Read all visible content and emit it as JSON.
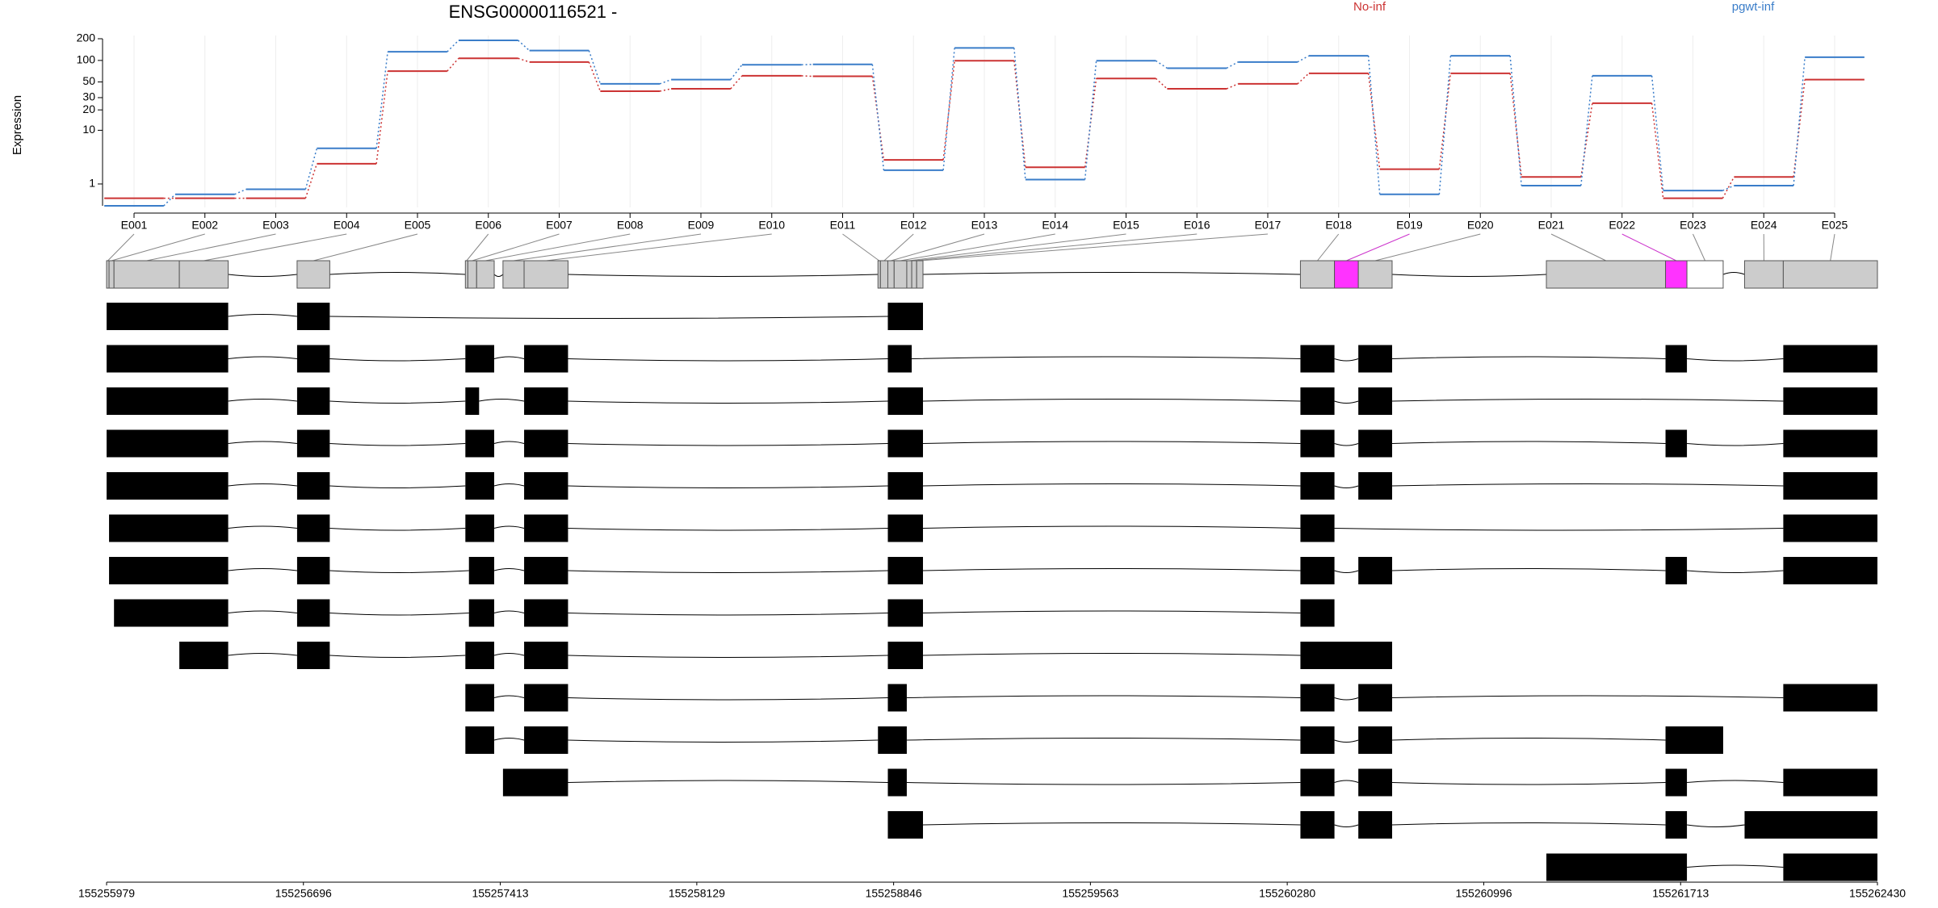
{
  "chart_data": [
    {
      "type": "step",
      "title": "ENSG00000116521 -",
      "y_label": "Expression",
      "yscale": "log10(x+1)",
      "categories": [
        "E001",
        "E002",
        "E003",
        "E004",
        "E005",
        "E006",
        "E007",
        "E008",
        "E009",
        "E010",
        "E011",
        "E012",
        "E013",
        "E014",
        "E015",
        "E016",
        "E017",
        "E018",
        "E019",
        "E020",
        "E021",
        "E022",
        "E023",
        "E024",
        "E025"
      ],
      "series": [
        {
          "name": "No-inf",
          "color": "#cc3333",
          "values": [
            0.27,
            0.27,
            0.27,
            2.8,
            71,
            107,
            95,
            37,
            40,
            61,
            60,
            3.3,
            99,
            2.4,
            56,
            40,
            47,
            66,
            2.2,
            66,
            1.5,
            25,
            0.27,
            1.5,
            54
          ]
        },
        {
          "name": "pgwt-inf",
          "color": "#3a7dc9",
          "values": [
            0,
            0.44,
            0.69,
            5.2,
            132,
            190,
            137,
            47,
            54,
            87,
            88,
            2.1,
            149,
            1.3,
            99,
            78,
            95,
            116,
            0.44,
            116,
            0.9,
            61,
            0.62,
            0.9,
            111
          ]
        }
      ],
      "ylim": [
        0,
        200
      ],
      "yticks": [
        1,
        10,
        20,
        30,
        50,
        100,
        200
      ],
      "grid": true
    },
    {
      "type": "gene-model",
      "xlim": [
        155255979,
        155262430
      ],
      "xticks": [
        155255979,
        155256696,
        155257413,
        155258129,
        155258846,
        155259563,
        155260280,
        155260996,
        155261713,
        155262430
      ],
      "exons": [
        {
          "start": 155255979,
          "end": 155255988,
          "fill": "#cccccc"
        },
        {
          "start": 155255988,
          "end": 155256006,
          "fill": "#cccccc"
        },
        {
          "start": 155256006,
          "end": 155256244,
          "fill": "#cccccc"
        },
        {
          "start": 155256244,
          "end": 155256422,
          "fill": "#cccccc"
        },
        {
          "start": 155256673,
          "end": 155256792,
          "fill": "#cccccc"
        },
        {
          "start": 155257286,
          "end": 155257295,
          "fill": "#cccccc"
        },
        {
          "start": 155257295,
          "end": 155257327,
          "fill": "#cccccc"
        },
        {
          "start": 155257327,
          "end": 155257391,
          "fill": "#cccccc"
        },
        {
          "start": 155257423,
          "end": 155257500,
          "fill": "#cccccc"
        },
        {
          "start": 155257500,
          "end": 155257660,
          "fill": "#cccccc"
        },
        {
          "start": 155258789,
          "end": 155258798,
          "fill": "#cccccc"
        },
        {
          "start": 155258798,
          "end": 155258825,
          "fill": "#cccccc"
        },
        {
          "start": 155258825,
          "end": 155258848,
          "fill": "#cccccc"
        },
        {
          "start": 155258848,
          "end": 155258894,
          "fill": "#cccccc"
        },
        {
          "start": 155258894,
          "end": 155258912,
          "fill": "#cccccc"
        },
        {
          "start": 155258912,
          "end": 155258930,
          "fill": "#cccccc"
        },
        {
          "start": 155258930,
          "end": 155258953,
          "fill": "#cccccc"
        },
        {
          "start": 155260328,
          "end": 155260452,
          "fill": "#cccccc"
        },
        {
          "start": 155260452,
          "end": 155260539,
          "fill": "#ff33ff"
        },
        {
          "start": 155260539,
          "end": 155260662,
          "fill": "#cccccc"
        },
        {
          "start": 155261224,
          "end": 155261658,
          "fill": "#cccccc"
        },
        {
          "start": 155261658,
          "end": 155261736,
          "fill": "#ff33ff"
        },
        {
          "start": 155261736,
          "end": 155261868,
          "fill": "#ffffff"
        },
        {
          "start": 155261946,
          "end": 155262087,
          "fill": "#cccccc"
        },
        {
          "start": 155262087,
          "end": 155262430,
          "fill": "#cccccc"
        }
      ],
      "transcripts": [
        [
          [
            155255979,
            155256422
          ],
          [
            155256673,
            155256792
          ],
          [
            155258825,
            155258953
          ]
        ],
        [
          [
            155255979,
            155256422
          ],
          [
            155256673,
            155256792
          ],
          [
            155257286,
            155257391
          ],
          [
            155257500,
            155257660
          ],
          [
            155258825,
            155258912
          ],
          [
            155260328,
            155260452
          ],
          [
            155260539,
            155260662
          ],
          [
            155261658,
            155261736
          ],
          [
            155262087,
            155262430
          ]
        ],
        [
          [
            155255979,
            155256422
          ],
          [
            155256673,
            155256792
          ],
          [
            155257286,
            155257336
          ],
          [
            155257500,
            155257660
          ],
          [
            155258825,
            155258953
          ],
          [
            155260328,
            155260452
          ],
          [
            155260539,
            155260662
          ],
          [
            155262087,
            155262430
          ]
        ],
        [
          [
            155255979,
            155256422
          ],
          [
            155256673,
            155256792
          ],
          [
            155257286,
            155257391
          ],
          [
            155257500,
            155257660
          ],
          [
            155258825,
            155258953
          ],
          [
            155260328,
            155260452
          ],
          [
            155260539,
            155260662
          ],
          [
            155261658,
            155261736
          ],
          [
            155262087,
            155262430
          ]
        ],
        [
          [
            155255979,
            155256422
          ],
          [
            155256673,
            155256792
          ],
          [
            155257286,
            155257391
          ],
          [
            155257500,
            155257660
          ],
          [
            155258825,
            155258953
          ],
          [
            155260328,
            155260452
          ],
          [
            155260539,
            155260662
          ],
          [
            155262087,
            155262430
          ]
        ],
        [
          [
            155255988,
            155256422
          ],
          [
            155256673,
            155256792
          ],
          [
            155257286,
            155257391
          ],
          [
            155257500,
            155257660
          ],
          [
            155258825,
            155258953
          ],
          [
            155260328,
            155260452
          ],
          [
            155262087,
            155262430
          ]
        ],
        [
          [
            155255988,
            155256422
          ],
          [
            155256673,
            155256792
          ],
          [
            155257299,
            155257391
          ],
          [
            155257500,
            155257660
          ],
          [
            155258825,
            155258953
          ],
          [
            155260328,
            155260452
          ],
          [
            155260539,
            155260662
          ],
          [
            155261658,
            155261736
          ],
          [
            155262087,
            155262430
          ]
        ],
        [
          [
            155256006,
            155256422
          ],
          [
            155256673,
            155256792
          ],
          [
            155257299,
            155257391
          ],
          [
            155257500,
            155257660
          ],
          [
            155258825,
            155258953
          ],
          [
            155260328,
            155260452
          ]
        ],
        [
          [
            155256244,
            155256422
          ],
          [
            155256673,
            155256792
          ],
          [
            155257286,
            155257391
          ],
          [
            155257500,
            155257660
          ],
          [
            155258825,
            155258953
          ],
          [
            155260328,
            155260662
          ]
        ],
        [
          [
            155257286,
            155257391
          ],
          [
            155257500,
            155257660
          ],
          [
            155258825,
            155258894
          ],
          [
            155260328,
            155260452
          ],
          [
            155260539,
            155260662
          ],
          [
            155262087,
            155262430
          ]
        ],
        [
          [
            155257286,
            155257391
          ],
          [
            155257500,
            155257660
          ],
          [
            155258789,
            155258894
          ],
          [
            155260328,
            155260452
          ],
          [
            155260539,
            155260662
          ],
          [
            155261658,
            155261868
          ]
        ],
        [
          [
            155257423,
            155257660
          ],
          [
            155258825,
            155258894
          ],
          [
            155260328,
            155260452
          ],
          [
            155260539,
            155260662
          ],
          [
            155261658,
            155261736
          ],
          [
            155262087,
            155262430
          ]
        ],
        [
          [
            155258825,
            155258953
          ],
          [
            155260328,
            155260452
          ],
          [
            155260539,
            155260662
          ],
          [
            155261658,
            155261736
          ],
          [
            155261946,
            155262430
          ]
        ],
        [
          [
            155261224,
            155261736
          ],
          [
            155262087,
            155262430
          ]
        ]
      ]
    }
  ]
}
